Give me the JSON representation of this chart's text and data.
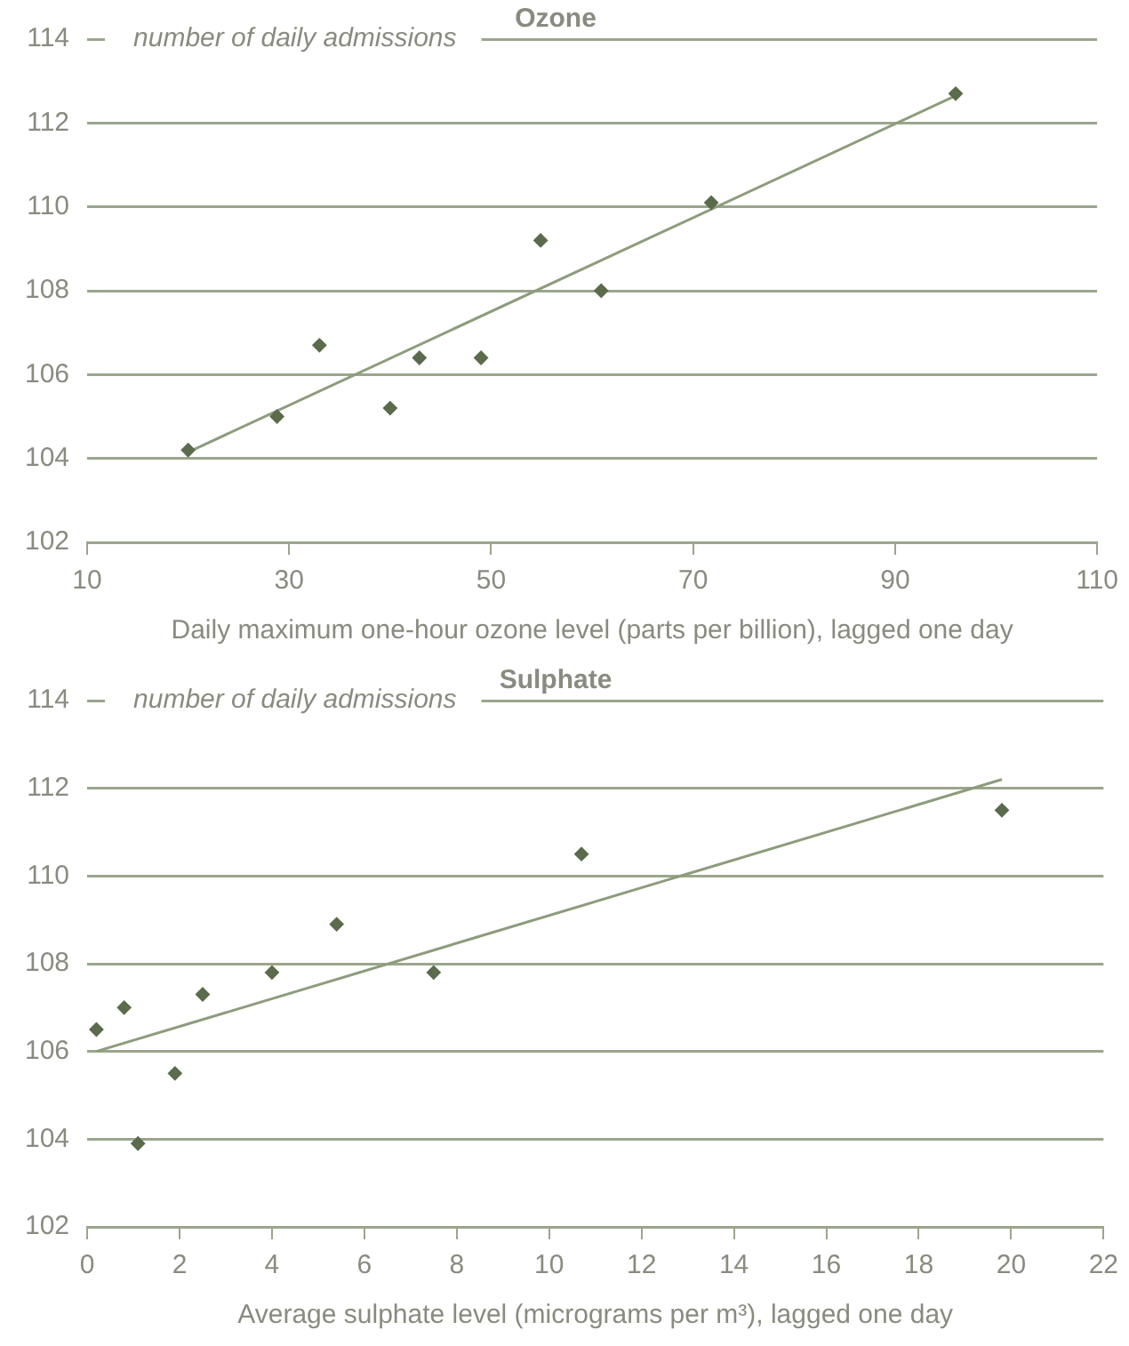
{
  "chart_data": [
    {
      "type": "scatter",
      "title": "Ozone",
      "xlabel": "Daily maximum one-hour ozone level (parts per billion), lagged one day",
      "ylabel": "number of daily admissions",
      "xlim": [
        10,
        110
      ],
      "xticks": [
        10,
        30,
        50,
        70,
        90,
        110
      ],
      "ylim": [
        102,
        114
      ],
      "yticks": [
        102,
        104,
        106,
        108,
        110,
        112,
        114
      ],
      "grid": "y",
      "series": [
        {
          "marker": "diamond",
          "color": "#5b6b4c",
          "x": [
            20,
            28.8,
            33,
            40,
            42.9,
            49,
            54.9,
            60.9,
            71.8,
            96
          ],
          "values": [
            104.2,
            105,
            106.7,
            105.2,
            106.4,
            106.4,
            109.2,
            108,
            110.1,
            112.7
          ]
        },
        {
          "type": "line",
          "marker": "none",
          "color": "#8d9c7c",
          "x": [
            20,
            96
          ],
          "values": [
            104.15,
            112.65
          ]
        }
      ]
    },
    {
      "type": "scatter",
      "title": "Sulphate",
      "xlabel": "Average sulphate level (micrograms per m³), lagged one day",
      "ylabel": "number of daily admissions",
      "xlim": [
        0,
        22
      ],
      "xticks": [
        0,
        2,
        4,
        6,
        8,
        10,
        12,
        14,
        16,
        18,
        20,
        22
      ],
      "ylim": [
        102,
        114
      ],
      "yticks": [
        102,
        104,
        106,
        108,
        110,
        112,
        114
      ],
      "grid": "y",
      "series": [
        {
          "marker": "diamond",
          "color": "#5b6b4c",
          "x": [
            0.2,
            0.8,
            1.1,
            1.9,
            2.5,
            4,
            5.4,
            7.5,
            10.7,
            19.8
          ],
          "values": [
            106.5,
            107,
            103.9,
            105.5,
            107.3,
            107.8,
            108.9,
            107.8,
            110.5,
            111.5
          ]
        },
        {
          "type": "line",
          "marker": "none",
          "color": "#8d9c7c",
          "x": [
            0.2,
            19.8
          ],
          "values": [
            106,
            112.2
          ]
        }
      ]
    }
  ]
}
